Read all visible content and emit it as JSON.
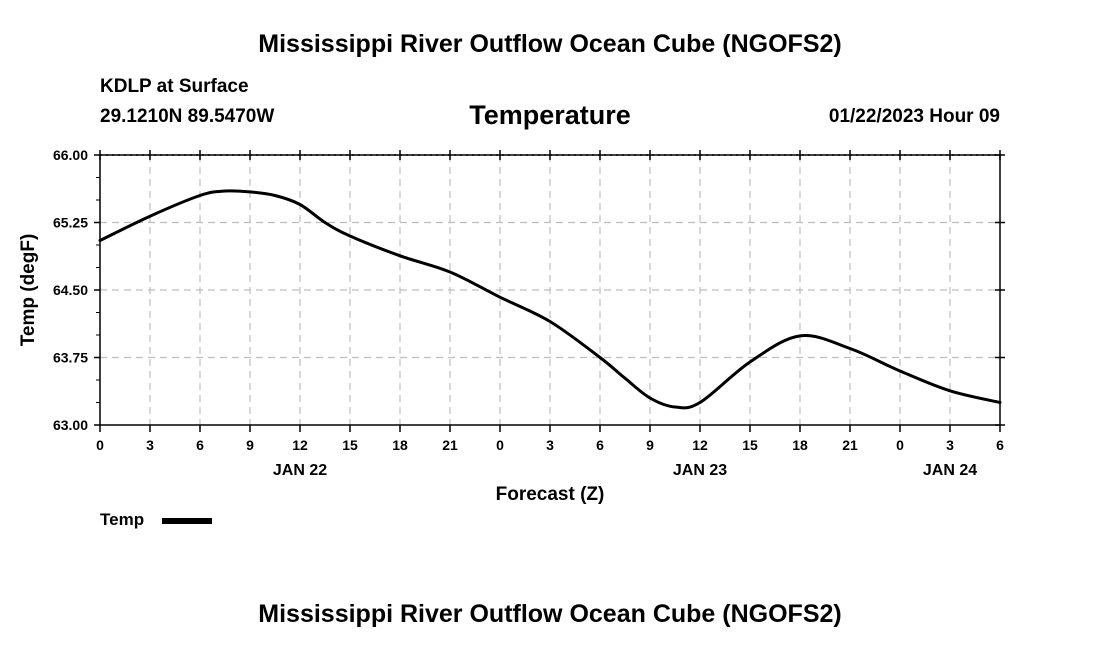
{
  "page": {
    "main_title": "Mississippi River Outflow Ocean Cube (NGOFS2)",
    "footer_title": "Mississippi River Outflow Ocean Cube (NGOFS2)",
    "station_line": "KDLP at Surface",
    "coords_line": "29.1210N  89.5470W",
    "datetime": "01/22/2023 Hour 09"
  },
  "chart_data": {
    "type": "line",
    "title": "Temperature",
    "xlabel": "Forecast (Z)",
    "ylabel": "Temp (degF)",
    "ylim": [
      63.0,
      66.0
    ],
    "y_ticks": [
      "63.00",
      "63.75",
      "64.50",
      "65.25",
      "66.00"
    ],
    "y_tick_values": [
      63.0,
      63.75,
      64.5,
      65.25,
      66.0
    ],
    "xlim": [
      0,
      54
    ],
    "x_tick_values": [
      0,
      3,
      6,
      9,
      12,
      15,
      18,
      21,
      24,
      27,
      30,
      33,
      36,
      39,
      42,
      45,
      48,
      51,
      54
    ],
    "x_tick_labels": [
      "0",
      "3",
      "6",
      "9",
      "12",
      "15",
      "18",
      "21",
      "0",
      "3",
      "6",
      "9",
      "12",
      "15",
      "18",
      "21",
      "0",
      "3",
      "6"
    ],
    "date_labels": [
      {
        "label": "JAN 22",
        "hour": 12
      },
      {
        "label": "JAN 23",
        "hour": 36
      },
      {
        "label": "JAN 24",
        "hour": 51
      }
    ],
    "grid": true,
    "legend_position": "bottom-left",
    "series": [
      {
        "name": "Temp",
        "color": "#000000",
        "x": [
          0,
          3,
          6,
          7.5,
          9,
          10.5,
          12,
          13.5,
          15,
          18,
          21,
          24,
          27,
          30,
          31.5,
          33,
          34.5,
          36,
          39,
          42,
          45,
          48,
          51,
          54
        ],
        "y": [
          65.05,
          65.32,
          65.55,
          65.6,
          65.59,
          65.55,
          65.45,
          65.25,
          65.1,
          64.88,
          64.7,
          64.42,
          64.15,
          63.75,
          63.52,
          63.3,
          63.2,
          63.25,
          63.7,
          63.99,
          63.85,
          63.6,
          63.38,
          63.25
        ]
      }
    ]
  }
}
